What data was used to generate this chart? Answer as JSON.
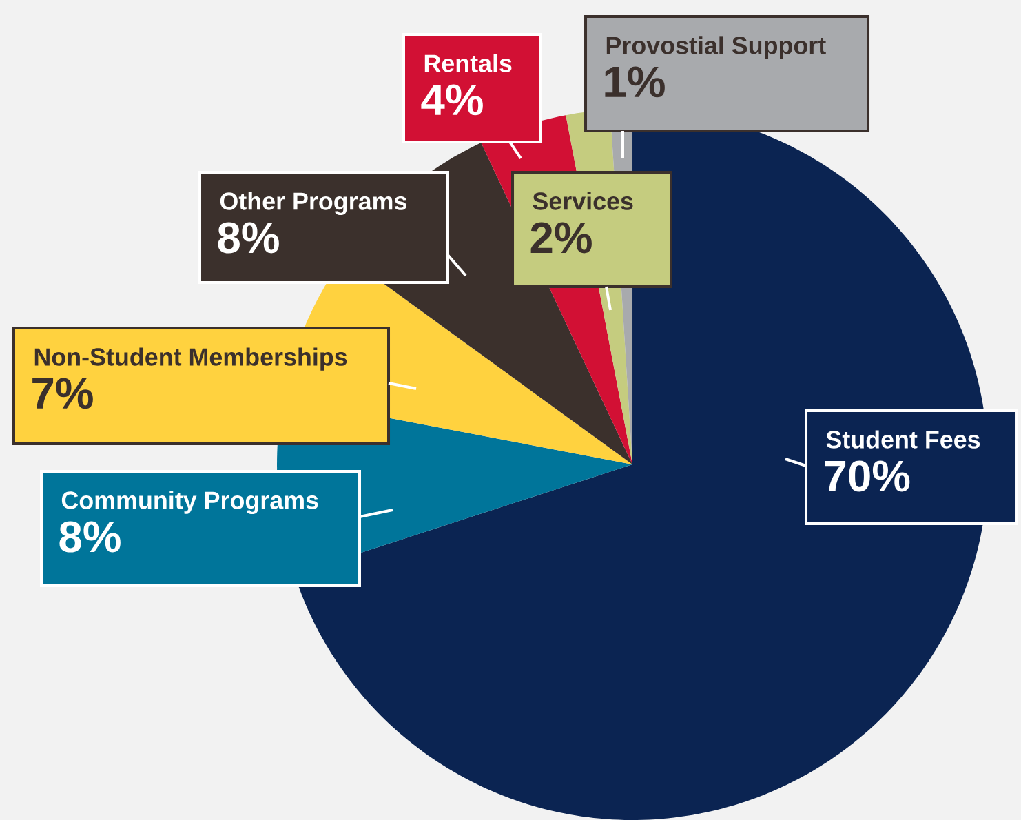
{
  "chart_data": {
    "type": "pie",
    "categories": [
      "Student Fees",
      "Community Programs",
      "Non-Student Memberships",
      "Other Programs",
      "Rentals",
      "Services",
      "Provostial Support"
    ],
    "values": [
      70,
      8,
      7,
      8,
      4,
      2,
      1
    ],
    "value_labels": [
      "70%",
      "8%",
      "7%",
      "8%",
      "4%",
      "2%",
      "1%"
    ],
    "colors": [
      "#0b2452",
      "#00759a",
      "#ffd23f",
      "#3b302c",
      "#d21034",
      "#c5cc7f",
      "#a8aaad"
    ]
  }
}
